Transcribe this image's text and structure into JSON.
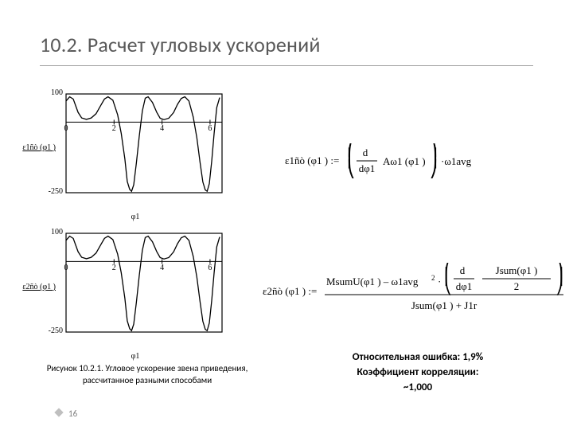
{
  "title": "10.2. Расчет угловых ускорений",
  "chart1": {
    "ylabel": "ε1ñò (φ1 )",
    "xlabel": "φ1",
    "xlim": [
      0,
      6.5
    ],
    "ylim": [
      -250,
      100
    ],
    "yticks": [
      -250,
      100
    ],
    "xticks": [
      0,
      2,
      4,
      6
    ],
    "series": {
      "color": "#000000",
      "width": 1.3,
      "points": [
        [
          0.0,
          75
        ],
        [
          0.15,
          90
        ],
        [
          0.3,
          82
        ],
        [
          0.5,
          35
        ],
        [
          0.65,
          15
        ],
        [
          0.85,
          10
        ],
        [
          1.05,
          15
        ],
        [
          1.25,
          30
        ],
        [
          1.45,
          60
        ],
        [
          1.6,
          82
        ],
        [
          1.75,
          90
        ],
        [
          1.95,
          78
        ],
        [
          2.15,
          26
        ],
        [
          2.3,
          -40
        ],
        [
          2.45,
          -130
        ],
        [
          2.55,
          -210
        ],
        [
          2.65,
          -238
        ],
        [
          2.73,
          -245
        ],
        [
          2.82,
          -222
        ],
        [
          2.93,
          -145
        ],
        [
          3.05,
          -50
        ],
        [
          3.18,
          40
        ],
        [
          3.3,
          85
        ],
        [
          3.42,
          90
        ],
        [
          3.6,
          70
        ],
        [
          3.78,
          35
        ],
        [
          3.92,
          14
        ],
        [
          4.08,
          9
        ],
        [
          4.28,
          14
        ],
        [
          4.48,
          34
        ],
        [
          4.65,
          64
        ],
        [
          4.8,
          84
        ],
        [
          4.95,
          90
        ],
        [
          5.12,
          75
        ],
        [
          5.3,
          18
        ],
        [
          5.45,
          -55
        ],
        [
          5.58,
          -140
        ],
        [
          5.7,
          -212
        ],
        [
          5.8,
          -240
        ],
        [
          5.88,
          -245
        ],
        [
          5.97,
          -218
        ],
        [
          6.07,
          -138
        ],
        [
          6.17,
          -40
        ],
        [
          6.28,
          52
        ],
        [
          6.4,
          87
        ]
      ]
    }
  },
  "chart2": {
    "ylabel": "ε2ñò (φ1 )",
    "xlabel": "φ1",
    "xlim": [
      0,
      6.5
    ],
    "ylim": [
      -250,
      100
    ],
    "yticks": [
      -250,
      100
    ],
    "xticks": [
      0,
      2,
      4,
      6
    ],
    "series": {
      "color": "#000000",
      "width": 1.3,
      "points": [
        [
          0.0,
          75
        ],
        [
          0.15,
          90
        ],
        [
          0.3,
          82
        ],
        [
          0.5,
          35
        ],
        [
          0.65,
          15
        ],
        [
          0.85,
          10
        ],
        [
          1.05,
          15
        ],
        [
          1.25,
          30
        ],
        [
          1.45,
          60
        ],
        [
          1.6,
          82
        ],
        [
          1.75,
          90
        ],
        [
          1.95,
          78
        ],
        [
          2.15,
          26
        ],
        [
          2.3,
          -40
        ],
        [
          2.45,
          -130
        ],
        [
          2.55,
          -210
        ],
        [
          2.65,
          -238
        ],
        [
          2.73,
          -245
        ],
        [
          2.82,
          -222
        ],
        [
          2.93,
          -145
        ],
        [
          3.05,
          -50
        ],
        [
          3.18,
          40
        ],
        [
          3.3,
          85
        ],
        [
          3.42,
          90
        ],
        [
          3.6,
          70
        ],
        [
          3.78,
          35
        ],
        [
          3.92,
          14
        ],
        [
          4.08,
          9
        ],
        [
          4.28,
          14
        ],
        [
          4.48,
          34
        ],
        [
          4.65,
          64
        ],
        [
          4.8,
          84
        ],
        [
          4.95,
          90
        ],
        [
          5.12,
          75
        ],
        [
          5.3,
          18
        ],
        [
          5.45,
          -55
        ],
        [
          5.58,
          -140
        ],
        [
          5.7,
          -212
        ],
        [
          5.8,
          -240
        ],
        [
          5.88,
          -245
        ],
        [
          5.97,
          -218
        ],
        [
          6.07,
          -138
        ],
        [
          6.17,
          -40
        ],
        [
          6.28,
          52
        ],
        [
          6.4,
          87
        ]
      ]
    }
  },
  "caption": "Рисунок 10.2.1. Угловое ускорение звена приведения, рассчитанное разными способами",
  "formula1": {
    "lhs": "ε1ñò (φ1 ) :="
  },
  "formula2": {
    "lhs": "ε2ñò (φ1 ) :="
  },
  "stats_line1": "Относительная ошибка: 1,9%",
  "stats_line2": "Коэффициент корреляции:",
  "stats_line3": "~1,000",
  "pagenum": "16",
  "colors": {
    "axis": "#000000",
    "title": "#595959",
    "hr": "#a0a0a0"
  }
}
